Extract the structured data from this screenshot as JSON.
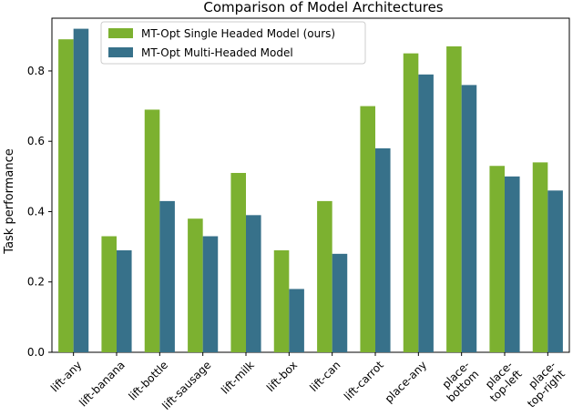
{
  "chart_data": {
    "type": "bar",
    "title": "Comparison of Model Architectures",
    "xlabel": "",
    "ylabel": "Task performance",
    "ylim": [
      0,
      0.95
    ],
    "yticks": [
      "0.0",
      "0.2",
      "0.4",
      "0.6",
      "0.8"
    ],
    "categories": [
      "lift-any",
      "lift-banana",
      "lift-bottle",
      "lift-sausage",
      "lift-milk",
      "lift-box",
      "lift-can",
      "lift-carrot",
      "place-any",
      "place-\nbottom",
      "place-\ntop-left",
      "place-\ntop-right"
    ],
    "series": [
      {
        "name": "MT-Opt Single Headed Model (ours)",
        "color": "#7cb130",
        "values": [
          0.89,
          0.33,
          0.69,
          0.38,
          0.51,
          0.29,
          0.43,
          0.7,
          0.85,
          0.87,
          0.53,
          0.54
        ]
      },
      {
        "name": "MT-Opt Multi-Headed Model",
        "color": "#37718a",
        "values": [
          0.92,
          0.29,
          0.43,
          0.33,
          0.39,
          0.18,
          0.28,
          0.58,
          0.79,
          0.76,
          0.5,
          0.46
        ]
      }
    ],
    "legend_position": "top-left",
    "grid": false
  }
}
